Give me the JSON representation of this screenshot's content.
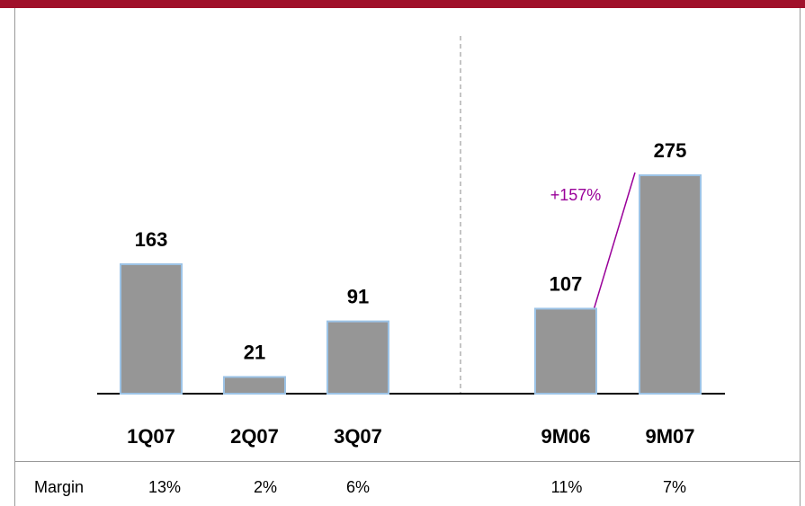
{
  "chart_data": {
    "type": "bar",
    "categories": [
      "1Q07",
      "2Q07",
      "3Q07",
      "9M06",
      "9M07"
    ],
    "values": [
      163,
      21,
      91,
      107,
      275
    ],
    "color": "#969696",
    "annotation": "+157%",
    "margin_label": "Margin",
    "margins": [
      "13%",
      "2%",
      "6%",
      "11%",
      "7%"
    ]
  }
}
